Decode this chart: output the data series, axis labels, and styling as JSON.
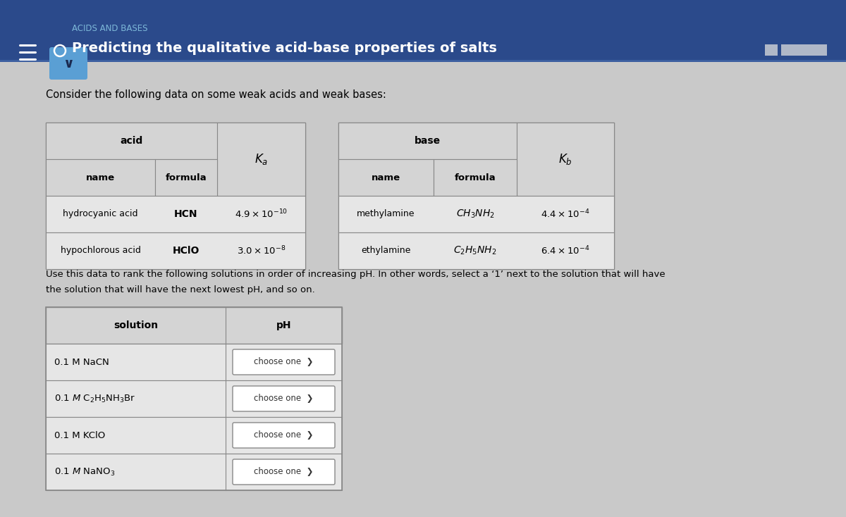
{
  "header_bg": "#2b4a8b",
  "header_bg2": "#1e3a7a",
  "body_bg": "#c9c9c9",
  "subtitle": "ACIDS AND BASES",
  "subtitle_color": "#7db8d8",
  "title": "Predicting the qualitative acid-base properties of salts",
  "title_color": "#ffffff",
  "intro_text": "Consider the following data on some weak acids and weak bases:",
  "para_text1": "Use this data to rank the following solutions in order of increasing pH. In other words, select a ‘1’ next to the solution that will have",
  "para_text2": "the solution that will have the next lowest pH, and so on.",
  "table_header_bg": "#d4d4d4",
  "table_row_bg": "#e6e6e6",
  "table_border": "#888888",
  "chevron_bg": "#5a9fd4",
  "chevron_color": "#1a3a6b",
  "scrollbar_color": "#b0b8c8",
  "acid_rows": [
    {
      "name": "hydrocyanic acid",
      "formula": "HCN",
      "ka_base": "4.9",
      "ka_exp": "-10"
    },
    {
      "name": "hypochlorous acid",
      "formula": "HClO",
      "ka_base": "3.0",
      "ka_exp": "-8"
    }
  ],
  "base_rows": [
    {
      "name": "methylamine",
      "formula": "CH_3NH_2",
      "kb_base": "4.4",
      "kb_exp": "-4"
    },
    {
      "name": "ethylamine",
      "formula": "C_2H_5NH_2",
      "kb_base": "6.4",
      "kb_exp": "-4"
    }
  ],
  "solutions": [
    "0.1 M NaCN",
    "0.1 M C₂H₅NH₃Br",
    "0.1 M KClO",
    "0.1 M NaNO₃"
  ]
}
